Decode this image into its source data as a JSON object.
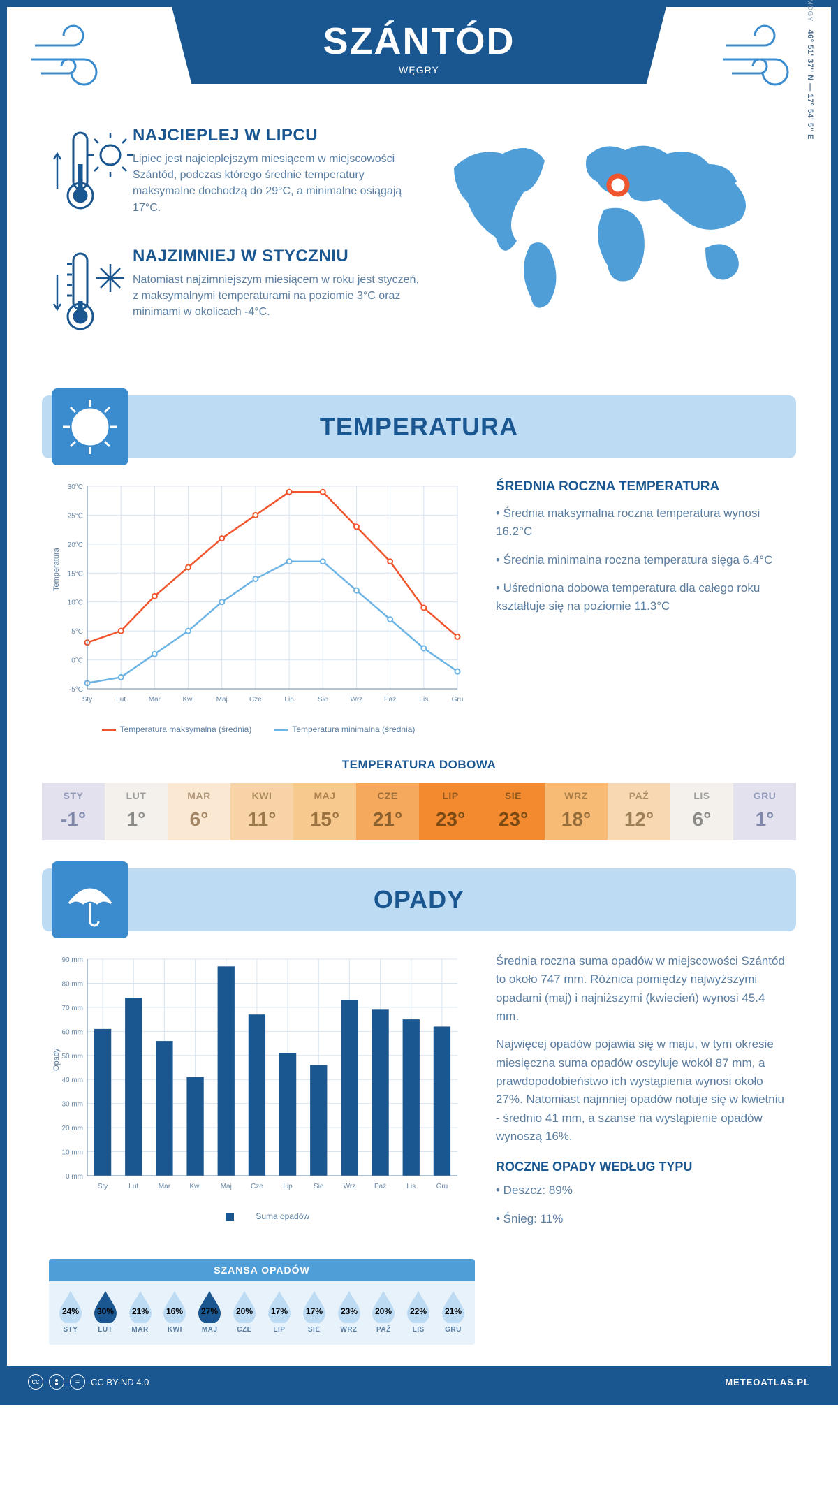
{
  "header": {
    "city": "SZÁNTÓD",
    "country": "WĘGRY"
  },
  "intro": {
    "hot": {
      "title": "NAJCIEPLEJ W LIPCU",
      "body": "Lipiec jest najcieplejszym miesiącem w miejscowości Szántód, podczas którego średnie temperatury maksymalne dochodzą do 29°C, a minimalne osiągają 17°C."
    },
    "cold": {
      "title": "NAJZIMNIEJ W STYCZNIU",
      "body": "Natomiast najzimniejszym miesiącem w roku jest styczeń, z maksymalnymi temperaturami na poziomie 3°C oraz minimami w okolicach -4°C."
    },
    "region": "SOMOGY",
    "coords": "46° 51' 37'' N — 17° 54' 5'' E"
  },
  "months": [
    "Sty",
    "Lut",
    "Mar",
    "Kwi",
    "Maj",
    "Cze",
    "Lip",
    "Sie",
    "Wrz",
    "Paź",
    "Lis",
    "Gru"
  ],
  "months_upper": [
    "STY",
    "LUT",
    "MAR",
    "KWI",
    "MAJ",
    "CZE",
    "LIP",
    "SIE",
    "WRZ",
    "PAŹ",
    "LIS",
    "GRU"
  ],
  "temperature": {
    "section_title": "TEMPERATURA",
    "chart": {
      "ylabel": "Temperatura",
      "ymin": -5,
      "ymax": 30,
      "ystep": 5,
      "ytick_labels": [
        "-5°C",
        "0°C",
        "5°C",
        "10°C",
        "15°C",
        "20°C",
        "25°C",
        "30°C"
      ],
      "max_series": [
        3,
        5,
        11,
        16,
        21,
        25,
        29,
        29,
        23,
        17,
        9,
        4
      ],
      "min_series": [
        -4,
        -3,
        1,
        5,
        10,
        14,
        17,
        17,
        12,
        7,
        2,
        -2
      ],
      "max_color": "#f0552d",
      "min_color": "#6db4e5",
      "grid_color": "#d8e4ef",
      "bg": "#ffffff",
      "legend_max": "Temperatura maksymalna (średnia)",
      "legend_min": "Temperatura minimalna (średnia)"
    },
    "summary": {
      "title": "ŚREDNIA ROCZNA TEMPERATURA",
      "b1": "• Średnia maksymalna roczna temperatura wynosi 16.2°C",
      "b2": "• Średnia minimalna roczna temperatura sięga 6.4°C",
      "b3": "• Uśredniona dobowa temperatura dla całego roku kształtuje się na poziomie 11.3°C"
    },
    "dobowa": {
      "title": "TEMPERATURA DOBOWA",
      "values": [
        "-1°",
        "1°",
        "6°",
        "11°",
        "15°",
        "21°",
        "23°",
        "23°",
        "18°",
        "12°",
        "6°",
        "1°"
      ],
      "bg_colors": [
        "#e2e1ed",
        "#f4f1ed",
        "#fae8d3",
        "#f7d3a7",
        "#f7c98f",
        "#f5a95c",
        "#f48a30",
        "#f48a30",
        "#f7bb76",
        "#f7d8b3",
        "#f4f1ed",
        "#e2e1ed"
      ],
      "fg_colors": [
        "#7f88aa",
        "#8a8a88",
        "#a18565",
        "#9b7848",
        "#9b7340",
        "#8a5f2e",
        "#7a4a15",
        "#7a4a15",
        "#946d3a",
        "#9c7f56",
        "#8a8a88",
        "#7f88aa"
      ]
    }
  },
  "precip": {
    "section_title": "OPADY",
    "chart": {
      "ylabel": "Opady",
      "ymin": 0,
      "ymax": 90,
      "ystep": 10,
      "values": [
        61,
        74,
        56,
        41,
        87,
        67,
        51,
        46,
        73,
        69,
        65,
        62
      ],
      "bar_color": "#1a568f",
      "grid_color": "#d8e4ef",
      "legend": "Suma opadów"
    },
    "para1": "Średnia roczna suma opadów w miejscowości Szántód to około 747 mm. Różnica pomiędzy najwyższymi opadami (maj) i najniższymi (kwiecień) wynosi 45.4 mm.",
    "para2": "Najwięcej opadów pojawia się w maju, w tym okresie miesięczna suma opadów oscyluje wokół 87 mm, a prawdopodobieństwo ich wystąpienia wynosi około 27%. Natomiast najmniej opadów notuje się w kwietniu - średnio 41 mm, a szanse na wystąpienie opadów wynoszą 16%.",
    "chance": {
      "title": "SZANSA OPADÓW",
      "values": [
        24,
        30,
        21,
        16,
        27,
        20,
        17,
        17,
        23,
        20,
        22,
        21
      ],
      "highlight": [
        1,
        4
      ],
      "drop_light": "#bedbf4",
      "drop_dark": "#1a568f"
    },
    "type": {
      "title": "ROCZNE OPADY WEDŁUG TYPU",
      "rain": "• Deszcz: 89%",
      "snow": "• Śnieg: 11%"
    }
  },
  "footer": {
    "license": "CC BY-ND 4.0",
    "site": "METEOATLAS.PL"
  }
}
